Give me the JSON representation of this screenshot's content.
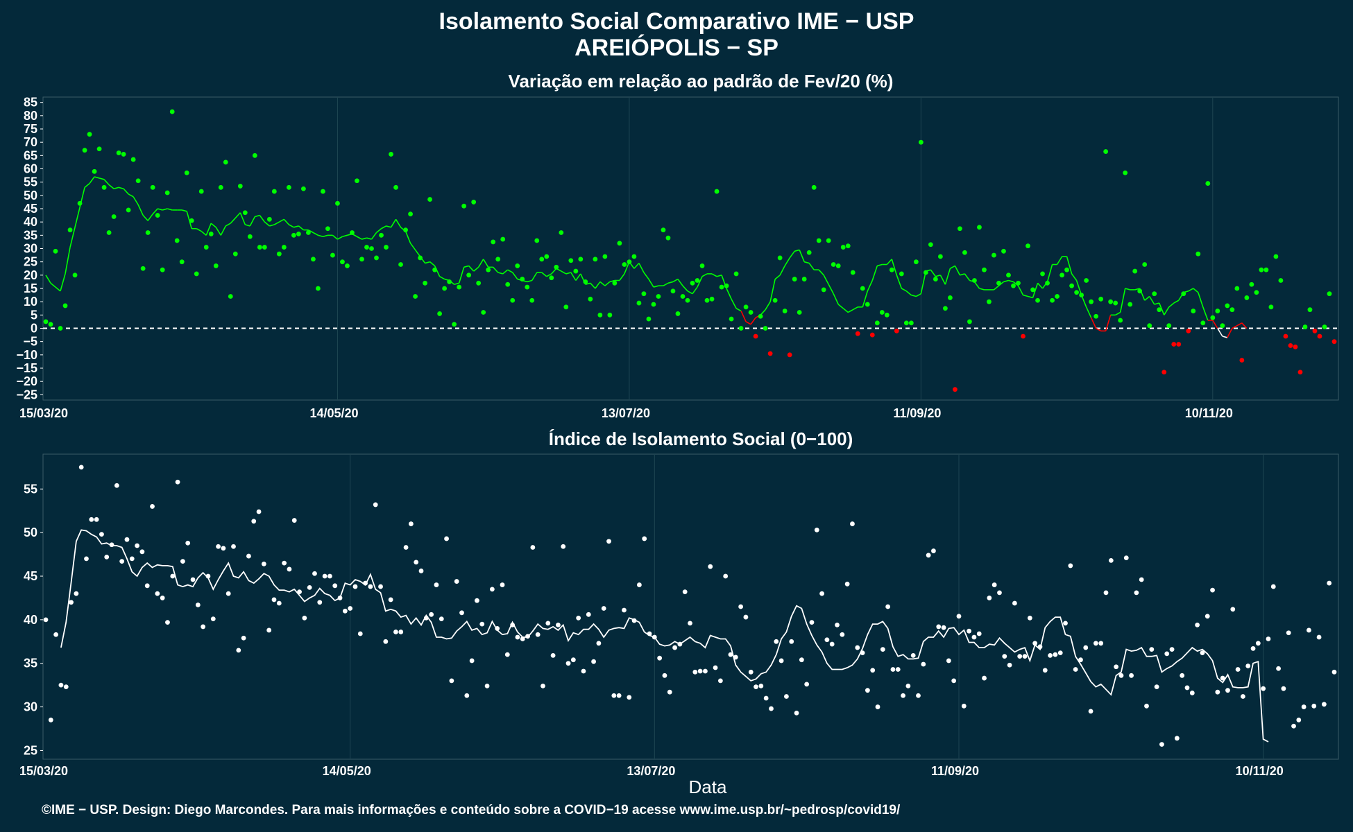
{
  "title": "Isolamento Social Comparativo IME − USP",
  "subtitle": "AREIÓPOLIS − SP",
  "footer": "©IME − USP. Design: Diego Marcondes. Para mais informações e conteúdo sobre a COVID−19 acesse www.ime.usp.br/~pedrosp/covid19/",
  "colors": {
    "background": "#04293a",
    "green": "#00ff00",
    "red": "#ff0000",
    "white": "#ffffff",
    "grid": "#1e4552"
  },
  "chart_data": [
    {
      "type": "scatter",
      "title": "Variação em relação ao padrão de Fev/20 (%)",
      "xlabel": "",
      "ylabel": "",
      "x_start": "15/03/20",
      "x_tick_labels": [
        "15/03/20",
        "14/05/20",
        "13/07/20",
        "11/09/20",
        "10/11/20"
      ],
      "y_ticks": [
        85,
        80,
        75,
        70,
        65,
        60,
        55,
        50,
        45,
        40,
        35,
        30,
        25,
        20,
        15,
        10,
        5,
        0,
        -5,
        -10,
        -15,
        -20,
        -25
      ],
      "ylim": [
        -27,
        87
      ],
      "reference_line": 0,
      "series": [
        {
          "values": [
            2.5,
            1.5,
            29,
            0,
            8.5,
            37,
            20,
            47,
            67,
            73,
            59,
            67.5,
            53,
            36,
            42,
            66,
            65.5,
            44.5,
            63.5,
            55.5,
            22.5,
            36,
            53,
            42.5,
            22,
            51,
            81.5,
            33,
            25,
            58.5,
            40.5,
            20.5,
            51.5,
            30.5,
            35.5,
            23.5,
            53,
            62.5,
            12,
            28,
            53.5,
            43.5,
            34.5,
            65,
            30.5,
            30.5,
            41,
            51.5,
            28,
            30.5,
            53,
            35,
            35.5,
            52.5,
            36,
            26,
            15,
            51.5,
            37.5,
            27.5,
            47,
            25,
            23.5,
            36,
            55.5,
            26,
            30.5,
            30,
            26.5,
            35,
            30.5,
            65.5,
            53,
            24,
            37,
            43,
            12,
            26.5,
            17,
            48.5,
            22,
            5.5,
            15,
            17.5,
            1.5,
            15.5,
            46,
            20,
            47.5,
            17,
            6,
            22,
            32.5,
            26,
            33.5,
            16.5,
            10.5,
            23.5,
            18.5,
            15.5,
            10.5,
            33,
            26,
            27,
            19,
            23,
            36,
            8,
            25.5,
            21.5,
            26,
            17.5,
            11,
            26,
            5,
            27,
            5,
            17,
            32,
            24,
            25,
            27,
            9.5,
            13,
            3.5,
            9,
            12,
            37,
            34,
            14,
            5.5,
            12,
            10.5,
            17,
            18,
            23.5,
            10.5,
            11,
            51.5,
            15.5,
            16,
            3.5,
            20.5,
            0,
            8,
            6,
            -3,
            4.5,
            0,
            -9.5,
            10.5,
            26.5,
            6.5,
            -10,
            18.5,
            6,
            18.5,
            28.5,
            53,
            33,
            14.5,
            33,
            24,
            23.5,
            30.5,
            31,
            21,
            -2,
            15,
            9,
            -2.5,
            2,
            6,
            5,
            22,
            -1,
            20.5,
            2,
            2,
            25,
            70,
            21,
            31.5,
            18.5,
            27,
            7.5,
            11.5,
            -23,
            37.5,
            28.5,
            2.5,
            18,
            38,
            22,
            10,
            27.5,
            17,
            29,
            20,
            16,
            17,
            -3,
            31,
            14.5,
            10.5,
            20.5,
            17,
            10.5,
            12,
            20,
            22,
            16,
            13.5,
            12.5,
            18,
            10,
            4.5,
            11,
            66.5,
            10,
            9.5,
            3,
            58.5,
            9,
            21.5,
            14,
            24,
            1,
            13,
            7,
            -16.5,
            1,
            -6,
            -6,
            13,
            -1,
            6.5,
            28,
            2,
            54.5,
            4,
            6.5,
            1,
            8.5,
            7,
            15,
            -12,
            11.5,
            16.5,
            13.5,
            22,
            22,
            8,
            27,
            18,
            -3,
            -6.5,
            -7,
            -16.5,
            0.5,
            7,
            -1,
            -3,
            0.5,
            13,
            -5
          ]
        },
        {
          "values": [
            20,
            17,
            15.5,
            14,
            20.5,
            30.5,
            38,
            45.5,
            53,
            54.5,
            57,
            56.5,
            56,
            54,
            52.5,
            53,
            52.5,
            50.5,
            49.5,
            46.5,
            42.5,
            40.5,
            43,
            45,
            44.5,
            45,
            44.5,
            44.5,
            44.5,
            44,
            37.5,
            37.5,
            36.5,
            35,
            39.5,
            38,
            35,
            38.5,
            39.5,
            41.5,
            43.5,
            39,
            38.5,
            42,
            42.5,
            40,
            38.5,
            39,
            40,
            41,
            39,
            38,
            38.5,
            37,
            37,
            36,
            35,
            34.5,
            35,
            35,
            33.5,
            34.5,
            35,
            35.5,
            34.5,
            33.5,
            34,
            33.5,
            36,
            37.5,
            38.5,
            38,
            41,
            38,
            36.5,
            32,
            29.5,
            27,
            24.5,
            25,
            23.5,
            19.5,
            18.5,
            18,
            16.5,
            17,
            23,
            23.5,
            21.5,
            23,
            26,
            23,
            23,
            21,
            20.5,
            22,
            21,
            18.5,
            18,
            17.5,
            18,
            21,
            21,
            19.5,
            20.5,
            22.5,
            21.5,
            20.5,
            21,
            18,
            20.5,
            16.5,
            17,
            15,
            17.5,
            16,
            17.5,
            18,
            18,
            20.5,
            25,
            22.5,
            24.5,
            21,
            18.5,
            15.5,
            16,
            16,
            17,
            17.5,
            18.5,
            16,
            14,
            13,
            15.5,
            19.5,
            20.5,
            20.5,
            19.5,
            20,
            15,
            11,
            7.5,
            6.5,
            2.5,
            1.5,
            4,
            5,
            7,
            10,
            18.5,
            20,
            23.5,
            26.5,
            29,
            29.5,
            25,
            24.5,
            22,
            22,
            20,
            16.5,
            13,
            9,
            7.5,
            6,
            7,
            8,
            8,
            14,
            18,
            23.5,
            24,
            24,
            26,
            20,
            15,
            14,
            12.5,
            12,
            13,
            21.5,
            22,
            19.5,
            20,
            16.5,
            22.5,
            23.5,
            20,
            20.5,
            18,
            17.5,
            15,
            14.5,
            14.5,
            14.5,
            16,
            17.5,
            18,
            17.5,
            16,
            12.5,
            12,
            11.5,
            17,
            15,
            17.5,
            24,
            24,
            27,
            27,
            20.5,
            18,
            12.5,
            8,
            4,
            0,
            -1,
            -1,
            5,
            5,
            6,
            15,
            14.5,
            14.5,
            15,
            10.5,
            12,
            9,
            9.5,
            5,
            8,
            9.5,
            10.5,
            13.5,
            14,
            15,
            13.5,
            8,
            3,
            3,
            0,
            -3,
            -3.5,
            0,
            1,
            2,
            0
          ]
        }
      ]
    },
    {
      "type": "scatter",
      "title": "Índice de Isolamento Social (0−100)",
      "xlabel": "Data",
      "ylabel": "",
      "x_start": "15/03/20",
      "x_tick_labels": [
        "15/03/20",
        "14/05/20",
        "13/07/20",
        "11/09/20",
        "10/11/20"
      ],
      "y_ticks": [
        55,
        50,
        45,
        40,
        35,
        30,
        25
      ],
      "ylim": [
        24,
        59
      ],
      "series": [
        {
          "values": [
            40,
            28.5,
            38.3,
            32.5,
            32.3,
            42,
            43,
            57.5,
            47,
            51.5,
            51.5,
            49.8,
            47.2,
            48.6,
            55.4,
            46.7,
            49.2,
            47,
            48.5,
            47.8,
            43.9,
            53,
            43,
            42.5,
            39.7,
            45,
            55.8,
            46.7,
            48.8,
            44.6,
            41.7,
            39.2,
            45,
            40.1,
            48.4,
            48.2,
            43,
            48.4,
            36.5,
            37.9,
            47.3,
            51.3,
            52.4,
            46.4,
            38.8,
            42.3,
            41.9,
            46.5,
            45.8,
            51.4,
            43.2,
            40.2,
            43.7,
            45.3,
            42,
            45,
            45,
            43.9,
            42.5,
            41,
            41.3,
            43.8,
            38.4,
            44.2,
            43.8,
            53.2,
            43.8,
            37.5,
            42.3,
            38.6,
            38.6,
            48.3,
            51,
            46.6,
            45.6,
            40.2,
            40.6,
            44,
            40.1,
            49.3,
            33,
            44.4,
            40.8,
            31.3,
            35.3,
            42.2,
            39.5,
            32.4,
            43.5,
            39,
            44,
            36,
            39.4,
            38,
            37.8,
            38.1,
            48.3,
            38.3,
            32.4,
            39.6,
            35.9,
            39.4,
            48.4,
            35,
            35.4,
            40.2,
            34.1,
            40.6,
            35.2,
            37.3,
            41.3,
            49,
            31.3,
            31.3,
            41.1,
            31.1,
            39.9,
            44,
            49.3,
            38.4,
            38,
            35.6,
            33.6,
            31.7,
            36.8,
            37.2,
            43.2,
            39.6,
            34,
            34.1,
            34.1,
            46.1,
            34.5,
            33,
            45,
            36,
            35.7,
            41.5,
            40.3,
            34,
            32.3,
            32.4,
            31,
            29.8,
            37.5,
            35.3,
            31.2,
            37.5,
            29.3,
            35.4,
            32.6,
            39.7,
            50.3,
            43,
            37.7,
            37.2,
            39.4,
            38.3,
            44.1,
            51,
            36.8,
            36.2,
            31.9,
            34.2,
            30,
            36.6,
            41.5,
            34.3,
            34.3,
            31.3,
            32.4,
            35.9,
            31.3,
            34.9,
            47.4,
            47.9,
            39.2,
            39.1,
            35.3,
            33,
            40.4,
            30.1,
            38.7,
            38,
            38.4,
            33.3,
            42.5,
            44,
            43.1,
            35.8,
            34.8,
            41.9,
            35.8,
            35.8,
            40.2,
            37.3,
            36.9,
            34.2,
            35.9,
            36,
            36.2,
            39.6,
            46.2,
            34.3,
            35.4,
            36.8,
            29.5,
            37.3,
            37.3,
            43.1,
            46.8,
            34.6,
            33.6,
            47.1,
            33.6,
            43.1,
            44.6,
            30.1,
            36.6,
            32.3,
            25.7,
            36.1,
            36.6,
            26.4,
            33.6,
            32.2,
            31.6,
            39.4,
            36.2,
            40.4,
            43.4,
            31.7,
            33.3,
            31.9,
            41.2,
            34.3,
            31.2,
            34.7,
            36.7,
            37.3,
            32.1,
            37.8,
            43.8,
            34.4,
            32.1,
            38.5,
            27.8,
            28.5,
            30,
            38.8,
            30.1,
            38,
            30.3,
            44.2,
            34
          ]
        },
        {
          "values": [
            null,
            null,
            null,
            36.8,
            39.7,
            44.3,
            49,
            50.3,
            50.2,
            49.8,
            49.5,
            48.7,
            48.8,
            48.5,
            48.5,
            48.3,
            47,
            45.5,
            45,
            46,
            46.5,
            46,
            46.3,
            46.2,
            46.2,
            46.1,
            44,
            43.8,
            44,
            43.8,
            44.8,
            45.4,
            44.8,
            43.5,
            44.6,
            45.6,
            46.5,
            45,
            44.8,
            45.5,
            44.5,
            44.2,
            44.7,
            45.3,
            45,
            44,
            43.4,
            43.4,
            43.2,
            43.5,
            42.8,
            42.1,
            42.5,
            42.8,
            43.6,
            43,
            42.8,
            42.2,
            42.5,
            44.2,
            44,
            44.6,
            44.4,
            44,
            45.2,
            43.5,
            43.1,
            41,
            41.2,
            41,
            40.3,
            40.5,
            39.5,
            40.2,
            39.4,
            40.5,
            39.7,
            38,
            38,
            37.8,
            37.9,
            38.7,
            39.2,
            39.8,
            38.8,
            39,
            38.3,
            38.5,
            39.8,
            38.8,
            38.3,
            38.4,
            39.7,
            38.6,
            38,
            38,
            38.7,
            39.5,
            39,
            38.9,
            39.2,
            38.8,
            39.4,
            37.6,
            38.5,
            38.3,
            38.9,
            38.9,
            39.5,
            38.9,
            38,
            38.8,
            39,
            39.1,
            39,
            40.2,
            40,
            39.7,
            38.6,
            38.2,
            38,
            37.2,
            37,
            37.1,
            37.5,
            37.2,
            37.6,
            38,
            37.5,
            37.3,
            36.8,
            38.2,
            38,
            37.8,
            37.8,
            37,
            34.8,
            34,
            33.5,
            33,
            33.2,
            33.8,
            34,
            34.8,
            36,
            37.8,
            38.6,
            40.4,
            41.6,
            41.3,
            39.5,
            38.2,
            37.1,
            36.3,
            35,
            34.3,
            34.3,
            34.3,
            34.5,
            34.8,
            35.5,
            36.7,
            38.3,
            39.5,
            39.5,
            39.8,
            39,
            36.9,
            35.8,
            36,
            35.5,
            35.5,
            35.6,
            37.5,
            38,
            38,
            38.7,
            38,
            39,
            39.1,
            38.3,
            38.8,
            37.4,
            37.4,
            36.8,
            36.8,
            37.2,
            37.1,
            37.9,
            37.3,
            36.8,
            36.3,
            36.6,
            36.8,
            35.3,
            37.1,
            36.6,
            39.1,
            39.8,
            40.3,
            40.3,
            38.3,
            38.1,
            35.8,
            34.9,
            33.9,
            32.9,
            32.3,
            32.6,
            32,
            31.4,
            33.6,
            34,
            36.6,
            36.4,
            36.5,
            36.8,
            35.8,
            35.8,
            35.9,
            34,
            34.4,
            34.7,
            35.2,
            35.6,
            36.2,
            36.8,
            36.4,
            36.6,
            36.1,
            35.3,
            33.3,
            32.8,
            33.7,
            32.3,
            32.2,
            32.2,
            32.3,
            35,
            35.2,
            26.3,
            26
          ]
        }
      ]
    }
  ]
}
